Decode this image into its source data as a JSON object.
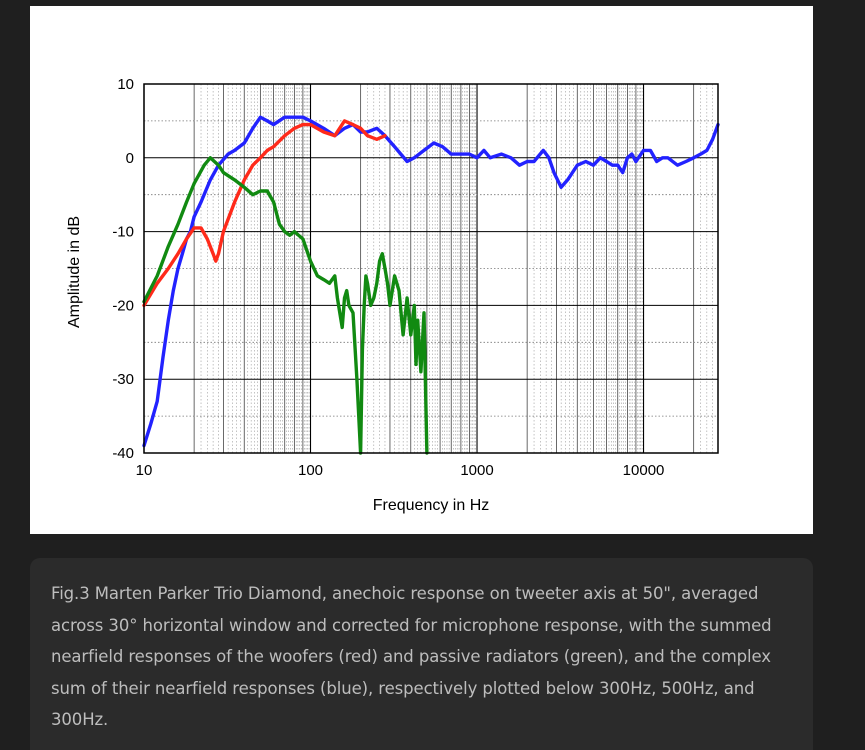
{
  "chart_data": {
    "type": "line",
    "xlabel": "Frequency in Hz",
    "ylabel": "Amplitude in dB",
    "x_scale": "log",
    "xlim": [
      10,
      28000
    ],
    "ylim": [
      -40,
      10
    ],
    "x_ticks": [
      10,
      100,
      1000,
      10000
    ],
    "x_tick_labels": [
      "10",
      "100",
      "1000",
      "10000"
    ],
    "y_ticks": [
      10,
      0,
      -10,
      -20,
      -30,
      -40
    ],
    "y_tick_labels": [
      "10",
      "0",
      "-10",
      "-20",
      "-30",
      "-40"
    ],
    "grid": true,
    "colors": {
      "blue": "#2222ff",
      "red": "#ff2a1a",
      "green": "#118a11"
    },
    "series": [
      {
        "color": "blue",
        "points": [
          [
            10,
            -39
          ],
          [
            11,
            -36
          ],
          [
            12,
            -33
          ],
          [
            13,
            -27
          ],
          [
            14,
            -22
          ],
          [
            15,
            -18
          ],
          [
            16,
            -15
          ],
          [
            17,
            -13
          ],
          [
            18,
            -11
          ],
          [
            19,
            -10
          ],
          [
            20,
            -8
          ],
          [
            22,
            -6
          ],
          [
            25,
            -3
          ],
          [
            28,
            -1
          ],
          [
            32,
            0.5
          ],
          [
            35,
            1
          ],
          [
            40,
            2
          ],
          [
            45,
            4
          ],
          [
            50,
            5.5
          ],
          [
            55,
            5
          ],
          [
            60,
            4.5
          ],
          [
            70,
            5.5
          ],
          [
            80,
            5.5
          ],
          [
            90,
            5.5
          ],
          [
            100,
            5
          ],
          [
            120,
            4
          ],
          [
            140,
            3
          ],
          [
            160,
            4
          ],
          [
            180,
            4.5
          ],
          [
            200,
            3.5
          ],
          [
            220,
            3.5
          ],
          [
            250,
            4
          ],
          [
            280,
            3
          ],
          [
            320,
            1.5
          ],
          [
            380,
            -0.5
          ],
          [
            420,
            0
          ],
          [
            480,
            1
          ],
          [
            550,
            2
          ],
          [
            620,
            1.5
          ],
          [
            700,
            0.5
          ],
          [
            800,
            0.5
          ],
          [
            900,
            0.5
          ],
          [
            1000,
            0
          ],
          [
            1100,
            1
          ],
          [
            1200,
            0
          ],
          [
            1400,
            0.5
          ],
          [
            1600,
            0
          ],
          [
            1800,
            -1
          ],
          [
            2000,
            -0.5
          ],
          [
            2200,
            -0.5
          ],
          [
            2500,
            1
          ],
          [
            2700,
            0
          ],
          [
            2900,
            -2
          ],
          [
            3200,
            -4
          ],
          [
            3500,
            -3
          ],
          [
            4000,
            -1
          ],
          [
            4500,
            -0.5
          ],
          [
            5000,
            -1
          ],
          [
            5500,
            0
          ],
          [
            6000,
            -0.5
          ],
          [
            6500,
            -1
          ],
          [
            7000,
            -1
          ],
          [
            7500,
            -2
          ],
          [
            8000,
            0
          ],
          [
            8500,
            0.5
          ],
          [
            9000,
            -0.5
          ],
          [
            10000,
            1
          ],
          [
            11000,
            1
          ],
          [
            12000,
            -0.5
          ],
          [
            13000,
            0
          ],
          [
            14000,
            0
          ],
          [
            16000,
            -1
          ],
          [
            18000,
            -0.5
          ],
          [
            20000,
            0
          ],
          [
            22000,
            0.5
          ],
          [
            24000,
            1
          ],
          [
            26000,
            2.5
          ],
          [
            28000,
            4.5
          ]
        ]
      },
      {
        "color": "red",
        "points": [
          [
            10,
            -20
          ],
          [
            12,
            -17
          ],
          [
            14,
            -15
          ],
          [
            16,
            -13
          ],
          [
            18,
            -11
          ],
          [
            20,
            -9.5
          ],
          [
            22,
            -9.5
          ],
          [
            24,
            -11
          ],
          [
            26,
            -13
          ],
          [
            27,
            -14
          ],
          [
            28,
            -13
          ],
          [
            30,
            -10
          ],
          [
            35,
            -6
          ],
          [
            40,
            -3
          ],
          [
            45,
            -1
          ],
          [
            50,
            0
          ],
          [
            55,
            1
          ],
          [
            60,
            1.5
          ],
          [
            70,
            3
          ],
          [
            80,
            4
          ],
          [
            90,
            4.5
          ],
          [
            100,
            4.5
          ],
          [
            120,
            3.5
          ],
          [
            140,
            3
          ],
          [
            160,
            5
          ],
          [
            180,
            4.5
          ],
          [
            200,
            4
          ],
          [
            220,
            3
          ],
          [
            250,
            2.5
          ],
          [
            280,
            3
          ]
        ]
      },
      {
        "color": "green",
        "points": [
          [
            10,
            -19.5
          ],
          [
            12,
            -16
          ],
          [
            14,
            -12
          ],
          [
            16,
            -9
          ],
          [
            18,
            -6
          ],
          [
            20,
            -3.5
          ],
          [
            23,
            -1
          ],
          [
            25,
            0
          ],
          [
            28,
            -1
          ],
          [
            30,
            -2
          ],
          [
            35,
            -3
          ],
          [
            40,
            -4
          ],
          [
            45,
            -5
          ],
          [
            50,
            -4.5
          ],
          [
            55,
            -4.5
          ],
          [
            60,
            -6
          ],
          [
            65,
            -9
          ],
          [
            70,
            -10
          ],
          [
            75,
            -10.5
          ],
          [
            80,
            -10
          ],
          [
            90,
            -11
          ],
          [
            100,
            -14
          ],
          [
            110,
            -16
          ],
          [
            120,
            -16.5
          ],
          [
            130,
            -17
          ],
          [
            140,
            -16
          ],
          [
            145,
            -19
          ],
          [
            150,
            -21
          ],
          [
            155,
            -23
          ],
          [
            160,
            -19
          ],
          [
            165,
            -18
          ],
          [
            170,
            -20
          ],
          [
            180,
            -21
          ],
          [
            190,
            -30
          ],
          [
            200,
            -40
          ],
          [
            205,
            -26
          ],
          [
            210,
            -20
          ],
          [
            215,
            -16
          ],
          [
            220,
            -17
          ],
          [
            230,
            -20
          ],
          [
            240,
            -19
          ],
          [
            250,
            -17
          ],
          [
            260,
            -14
          ],
          [
            270,
            -13
          ],
          [
            280,
            -15
          ],
          [
            290,
            -17
          ],
          [
            300,
            -20
          ],
          [
            310,
            -18
          ],
          [
            320,
            -16
          ],
          [
            340,
            -18
          ],
          [
            360,
            -24
          ],
          [
            380,
            -19
          ],
          [
            400,
            -24
          ],
          [
            420,
            -20
          ],
          [
            430,
            -28
          ],
          [
            440,
            -22
          ],
          [
            460,
            -29
          ],
          [
            480,
            -21
          ],
          [
            500,
            -40
          ]
        ]
      }
    ]
  },
  "caption": "Fig.3 Marten Parker Trio Diamond, anechoic response on tweeter axis at 50\", averaged across 30° horizontal window and corrected for microphone response, with the summed nearfield responses of the woofers (red) and passive radiators (green), and the complex sum of their nearfield responses (blue), respectively plotted below 300Hz, 500Hz, and 300Hz."
}
